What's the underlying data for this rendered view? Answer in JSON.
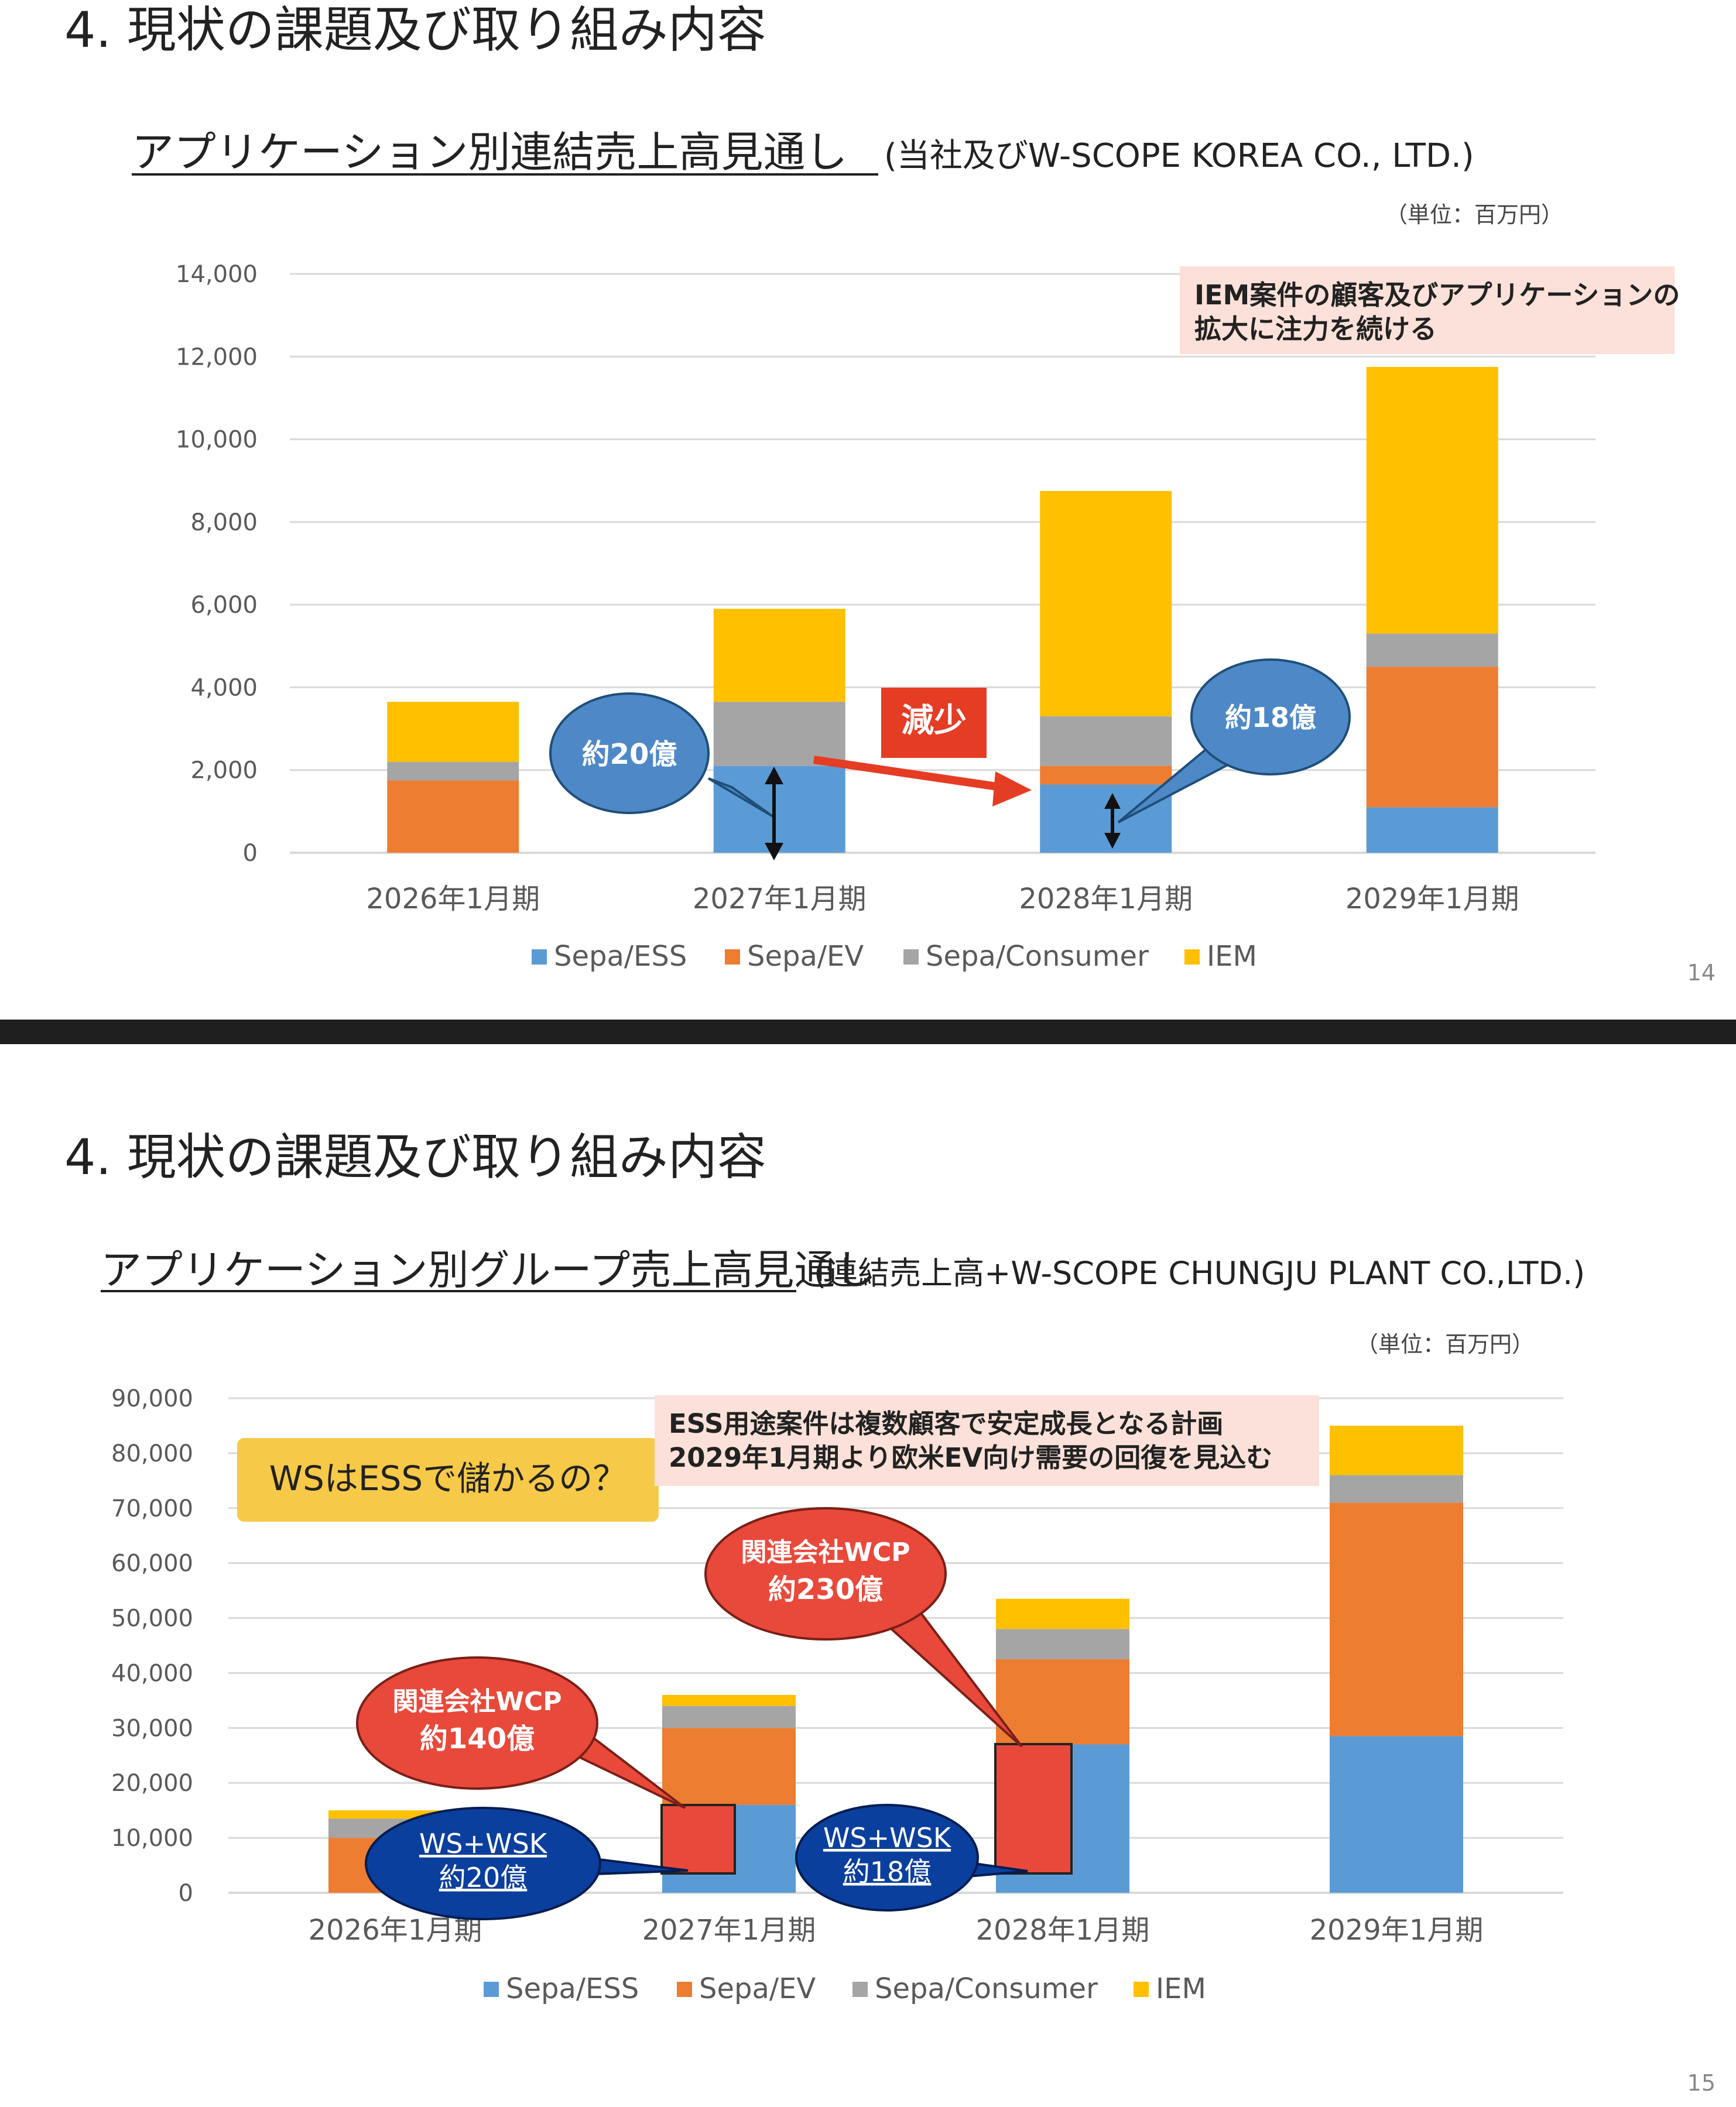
{
  "colors": {
    "ess": "#5b9bd5",
    "ev": "#ed7d31",
    "consumer": "#a5a5a5",
    "iem": "#ffc000",
    "divider": "#1f1f1f",
    "grid": "#d9d9d9",
    "axis": "#595959",
    "bubble_blue": "#4e88c7",
    "bubble_navy": "#0b3f9e",
    "bubble_red": "#e8493b",
    "note_bg": "#fbe1d9",
    "ws_bg": "#f7c948",
    "arrow_red": "#e53c24"
  },
  "slide1": {
    "heading": "4.  現状の課題及び取り組み内容",
    "subtitle_main": "アプリケーション別連結売上高見通し",
    "subtitle_sub": "(当社及びW-SCOPE KOREA CO., LTD.)",
    "unit": "（単位：百万円）",
    "note_line1": "IEM案件の顧客及びアプリケーションの",
    "note_line2": "拡大に注力を続ける",
    "bubble_a": "約20億",
    "bubble_b": "約18億",
    "decrease_label": "減少",
    "page_number": "14"
  },
  "slide2": {
    "heading": "4.  現状の課題及び取り組み内容",
    "subtitle_main": "アプリケーション別グループ売上高見通し",
    "subtitle_sub": "(連結売上高+W-SCOPE CHUNGJU PLANT CO.,LTD.)",
    "unit": "（単位：百万円）",
    "note_line1": "ESS用途案件は複数顧客で安定成長となる計画",
    "note_line2": "2029年1月期より欧米EV向け需要の回復を見込む",
    "ws_question": "WSはESSで儲かるの？",
    "wcp1_line1": "関連会社WCP",
    "wcp1_line2": "約140億",
    "wcp2_line1": "関連会社WCP",
    "wcp2_line2": "約230億",
    "wsk1_line1": "WS+WSK",
    "wsk1_line2": "約20億",
    "wsk2_line1": "WS+WSK",
    "wsk2_line2": "約18億",
    "page_number": "15"
  },
  "chart_data": [
    {
      "type": "bar",
      "stacked": true,
      "categories": [
        "2026年1月期",
        "2027年1月期",
        "2028年1月期",
        "2029年1月期"
      ],
      "series": [
        {
          "name": "Sepa/ESS",
          "values": [
            0,
            2100,
            1650,
            1100
          ]
        },
        {
          "name": "Sepa/EV",
          "values": [
            1750,
            0,
            450,
            3400
          ]
        },
        {
          "name": "Sepa/Consumer",
          "values": [
            450,
            1550,
            1200,
            800
          ]
        },
        {
          "name": "IEM",
          "values": [
            1450,
            2250,
            5450,
            6450
          ]
        }
      ],
      "ylim": [
        0,
        14000
      ],
      "yticks": [
        "0",
        "2,000",
        "4,000",
        "6,000",
        "8,000",
        "10,000",
        "12,000",
        "14,000"
      ],
      "grid": true,
      "legend": "bottom"
    },
    {
      "type": "bar",
      "stacked": true,
      "categories": [
        "2026年1月期",
        "2027年1月期",
        "2028年1月期",
        "2029年1月期"
      ],
      "series": [
        {
          "name": "Sepa/ESS",
          "values": [
            0,
            16000,
            27000,
            28500
          ]
        },
        {
          "name": "Sepa/EV",
          "values": [
            10000,
            14000,
            15500,
            42500
          ]
        },
        {
          "name": "Sepa/Consumer",
          "values": [
            3500,
            4000,
            5500,
            5000
          ]
        },
        {
          "name": "IEM",
          "values": [
            1500,
            2000,
            5500,
            9000
          ]
        }
      ],
      "ylim": [
        0,
        90000
      ],
      "yticks": [
        "0",
        "10,000",
        "20,000",
        "30,000",
        "40,000",
        "50,000",
        "60,000",
        "70,000",
        "80,000",
        "90,000"
      ],
      "grid": true,
      "legend": "bottom"
    }
  ]
}
